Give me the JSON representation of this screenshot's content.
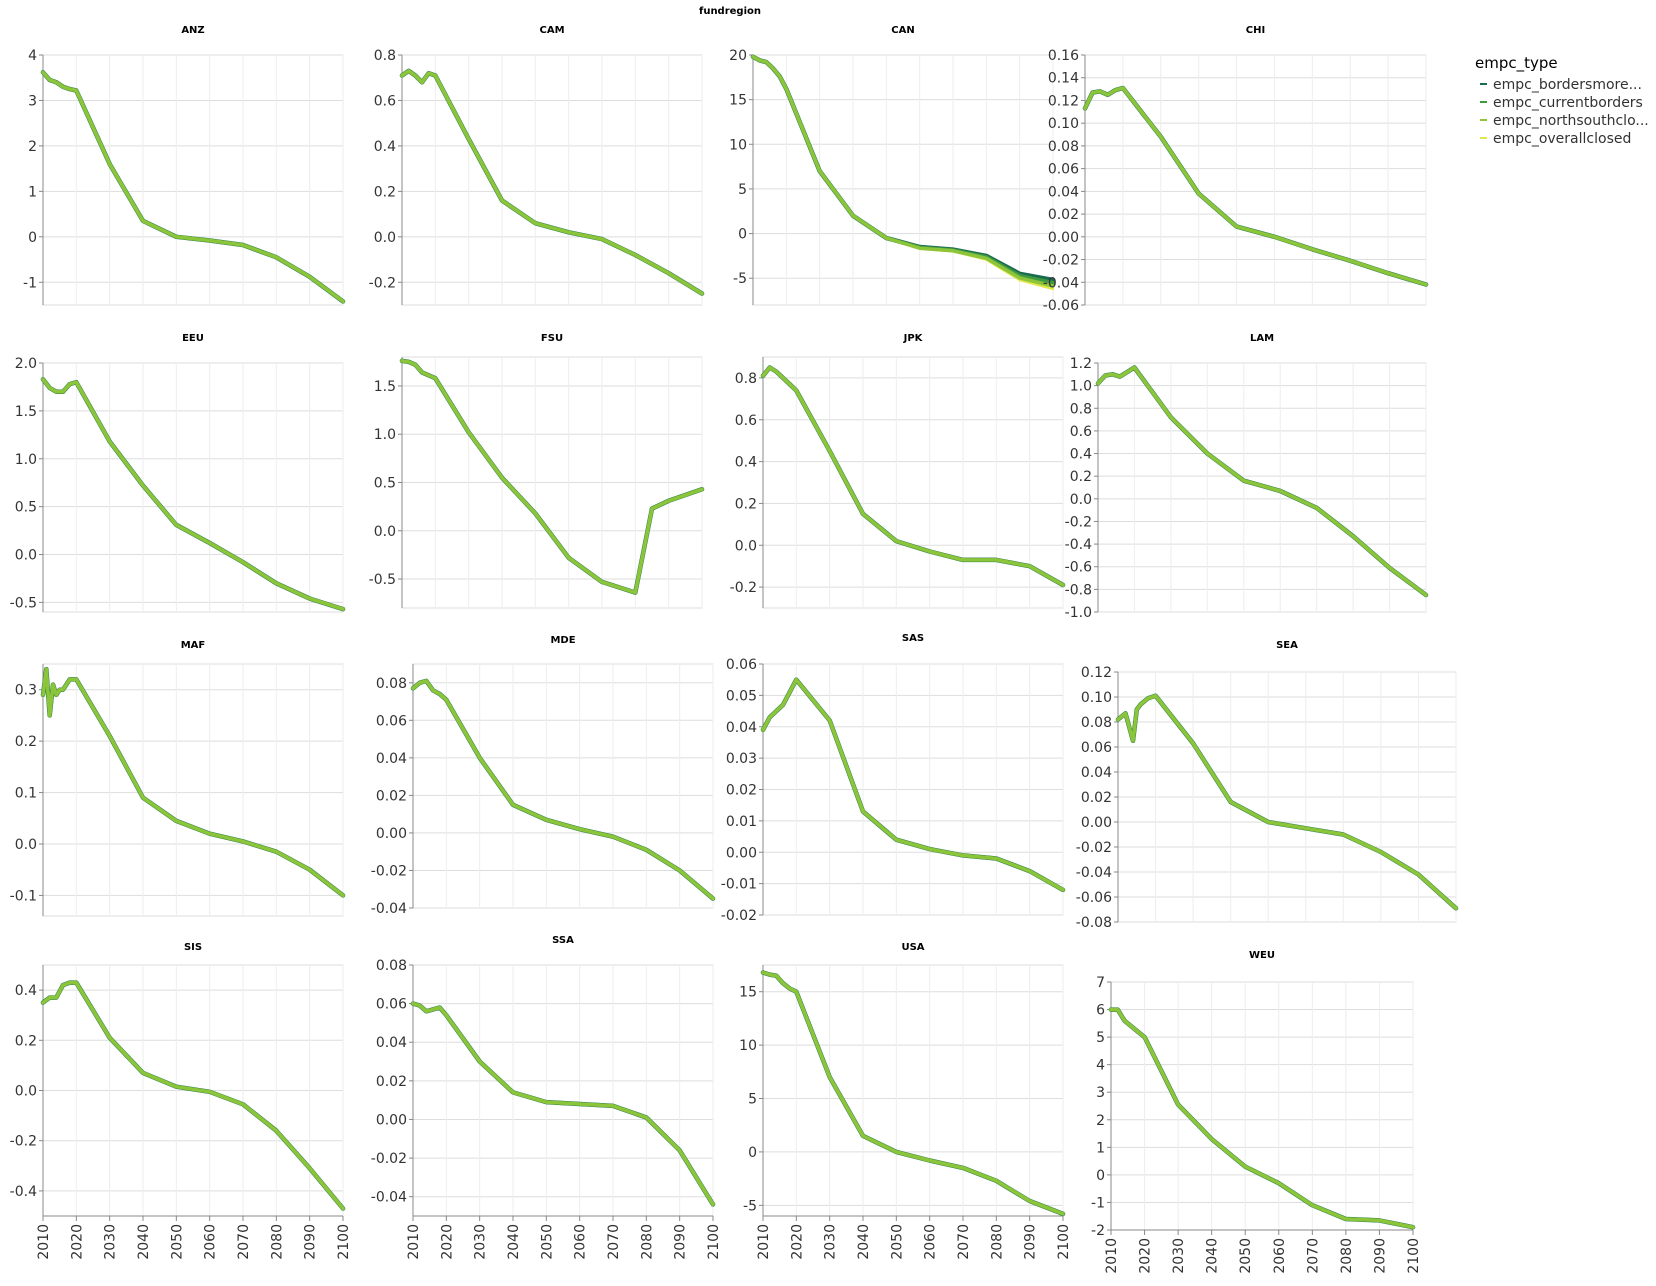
{
  "figure_title": "fundregion",
  "legend": {
    "title": "empc_type",
    "items": [
      "empc_bordersmore...",
      "empc_currentborders",
      "empc_northsouthclo...",
      "empc_overallclosed"
    ],
    "colors": [
      "#1b6b4f",
      "#3f9a3f",
      "#8cc43a",
      "#e1e84a"
    ]
  },
  "chart_data": [
    {
      "type": "line",
      "title": "ANZ",
      "yticks": [
        "4",
        "3",
        "2",
        "1",
        "0",
        "-1"
      ],
      "ytick_values": [
        4,
        3,
        2,
        1,
        0,
        -1
      ],
      "ylim": [
        -1.5,
        4
      ],
      "x": [
        2010,
        2012,
        2014,
        2016,
        2018,
        2020,
        2030,
        2040,
        2050,
        2060,
        2070,
        2080,
        2090,
        2100
      ],
      "series": [
        {
          "name": "empc_bordersmore...",
          "values": [
            3.62,
            3.45,
            3.4,
            3.3,
            3.25,
            3.22,
            1.6,
            0.35,
            0.0,
            -0.08,
            -0.18,
            -0.45,
            -0.88,
            -1.42
          ]
        }
      ]
    },
    {
      "type": "line",
      "title": "CAM",
      "yticks": [
        "0.8",
        "0.6",
        "0.4",
        "0.2",
        "0.0",
        "-0.2"
      ],
      "ytick_values": [
        0.8,
        0.6,
        0.4,
        0.2,
        0.0,
        -0.2
      ],
      "ylim": [
        -0.3,
        0.8
      ],
      "x": [
        2010,
        2012,
        2014,
        2016,
        2018,
        2020,
        2030,
        2040,
        2050,
        2060,
        2070,
        2080,
        2090,
        2100
      ],
      "series": [
        {
          "name": "empc_bordersmore...",
          "values": [
            0.71,
            0.73,
            0.71,
            0.68,
            0.72,
            0.71,
            0.43,
            0.16,
            0.06,
            0.02,
            -0.01,
            -0.08,
            -0.16,
            -0.25
          ]
        }
      ]
    },
    {
      "type": "line",
      "title": "CAN",
      "yticks": [
        "20",
        "15",
        "10",
        "5",
        "0",
        "-5"
      ],
      "ytick_values": [
        20,
        15,
        10,
        5,
        0,
        -5
      ],
      "ylim": [
        -8,
        20
      ],
      "x": [
        2010,
        2012,
        2014,
        2016,
        2018,
        2020,
        2030,
        2040,
        2050,
        2060,
        2070,
        2080,
        2090,
        2100
      ],
      "series": [
        {
          "name": "empc_bordersmore...",
          "values": [
            19.8,
            19.4,
            19.2,
            18.5,
            17.6,
            16.2,
            7.0,
            2.0,
            -0.5,
            -1.5,
            -1.8,
            -2.5,
            -4.5,
            -5.2
          ]
        },
        {
          "name": "empc_overallclosed",
          "values": [
            19.8,
            19.4,
            19.2,
            18.5,
            17.6,
            16.2,
            7.0,
            2.0,
            -0.5,
            -1.7,
            -2.0,
            -2.9,
            -5.2,
            -6.2
          ]
        }
      ]
    },
    {
      "type": "line",
      "title": "CHI",
      "yticks": [
        "0.16",
        "0.14",
        "0.12",
        "0.10",
        "0.08",
        "0.06",
        "0.04",
        "0.02",
        "0.00",
        "-0.02",
        "-0.04",
        "-0.06"
      ],
      "ytick_values": [
        0.16,
        0.14,
        0.12,
        0.1,
        0.08,
        0.06,
        0.04,
        0.02,
        0.0,
        -0.02,
        -0.04,
        -0.06
      ],
      "ylim": [
        -0.06,
        0.16
      ],
      "x": [
        2010,
        2012,
        2014,
        2016,
        2018,
        2020,
        2030,
        2040,
        2050,
        2060,
        2070,
        2080,
        2090,
        2100
      ],
      "series": [
        {
          "name": "empc_bordersmore...",
          "values": [
            0.113,
            0.127,
            0.128,
            0.125,
            0.129,
            0.131,
            0.088,
            0.038,
            0.009,
            0.0,
            -0.011,
            -0.021,
            -0.032,
            -0.042
          ]
        }
      ]
    },
    {
      "type": "line",
      "title": "EEU",
      "yticks": [
        "2.0",
        "1.5",
        "1.0",
        "0.5",
        "0.0",
        "-0.5"
      ],
      "ytick_values": [
        2.0,
        1.5,
        1.0,
        0.5,
        0.0,
        -0.5
      ],
      "ylim": [
        -0.6,
        2.0
      ],
      "x": [
        2010,
        2012,
        2014,
        2016,
        2018,
        2020,
        2030,
        2040,
        2050,
        2060,
        2070,
        2080,
        2090,
        2100
      ],
      "series": [
        {
          "name": "empc_bordersmore...",
          "values": [
            1.83,
            1.74,
            1.7,
            1.7,
            1.78,
            1.8,
            1.18,
            0.72,
            0.31,
            0.12,
            -0.08,
            -0.3,
            -0.46,
            -0.57
          ]
        }
      ]
    },
    {
      "type": "line",
      "title": "FSU",
      "yticks": [
        "1.5",
        "1.0",
        "0.5",
        "0.0",
        "-0.5"
      ],
      "ytick_values": [
        1.5,
        1.0,
        0.5,
        0.0,
        -0.5
      ],
      "ylim": [
        -0.8,
        1.8
      ],
      "x": [
        2010,
        2012,
        2014,
        2016,
        2018,
        2020,
        2030,
        2040,
        2050,
        2060,
        2070,
        2080,
        2085,
        2090,
        2100
      ],
      "series": [
        {
          "name": "empc_bordersmore...",
          "values": [
            1.76,
            1.75,
            1.72,
            1.64,
            1.61,
            1.58,
            1.02,
            0.55,
            0.18,
            -0.28,
            -0.53,
            -0.64,
            0.23,
            0.31,
            0.43
          ]
        }
      ]
    },
    {
      "type": "line",
      "title": "JPK",
      "yticks": [
        "0.8",
        "0.6",
        "0.4",
        "0.2",
        "0.0",
        "-0.2"
      ],
      "ytick_values": [
        0.8,
        0.6,
        0.4,
        0.2,
        0.0,
        -0.2
      ],
      "ylim": [
        -0.3,
        0.9
      ],
      "x": [
        2010,
        2012,
        2014,
        2016,
        2018,
        2020,
        2030,
        2040,
        2050,
        2060,
        2070,
        2080,
        2090,
        2100
      ],
      "series": [
        {
          "name": "empc_bordersmore...",
          "values": [
            0.81,
            0.85,
            0.83,
            0.8,
            0.77,
            0.74,
            0.45,
            0.15,
            0.02,
            -0.03,
            -0.07,
            -0.07,
            -0.1,
            -0.19
          ]
        }
      ]
    },
    {
      "type": "line",
      "title": "LAM",
      "yticks": [
        "1.2",
        "1.0",
        "0.8",
        "0.6",
        "0.4",
        "0.2",
        "0.0",
        "-0.2",
        "-0.4",
        "-0.6",
        "-0.8",
        "-1.0"
      ],
      "ytick_values": [
        1.2,
        1.0,
        0.8,
        0.6,
        0.4,
        0.2,
        0.0,
        -0.2,
        -0.4,
        -0.6,
        -0.8,
        -1.0
      ],
      "ylim": [
        -1.0,
        1.2
      ],
      "x": [
        2010,
        2012,
        2014,
        2016,
        2018,
        2020,
        2030,
        2040,
        2050,
        2060,
        2070,
        2080,
        2090,
        2100
      ],
      "series": [
        {
          "name": "empc_bordersmore...",
          "values": [
            1.02,
            1.09,
            1.1,
            1.08,
            1.12,
            1.16,
            0.72,
            0.4,
            0.16,
            0.07,
            -0.08,
            -0.33,
            -0.61,
            -0.85
          ]
        }
      ]
    },
    {
      "type": "line",
      "title": "MAF",
      "yticks": [
        "0.3",
        "0.2",
        "0.1",
        "0.0",
        "-0.1"
      ],
      "ytick_values": [
        0.3,
        0.2,
        0.1,
        0.0,
        -0.1
      ],
      "ylim": [
        -0.14,
        0.35
      ],
      "x": [
        2010,
        2011,
        2012,
        2013,
        2014,
        2015,
        2016,
        2017,
        2018,
        2020,
        2030,
        2040,
        2050,
        2060,
        2070,
        2080,
        2090,
        2100
      ],
      "series": [
        {
          "name": "empc_bordersmore...",
          "values": [
            0.29,
            0.34,
            0.25,
            0.31,
            0.29,
            0.3,
            0.3,
            0.31,
            0.32,
            0.32,
            0.21,
            0.09,
            0.045,
            0.02,
            0.005,
            -0.015,
            -0.05,
            -0.1
          ]
        }
      ]
    },
    {
      "type": "line",
      "title": "MDE",
      "yticks": [
        "0.08",
        "0.06",
        "0.04",
        "0.02",
        "0.00",
        "-0.02",
        "-0.04"
      ],
      "ytick_values": [
        0.08,
        0.06,
        0.04,
        0.02,
        0.0,
        -0.02,
        -0.04
      ],
      "ylim": [
        -0.04,
        0.09
      ],
      "x": [
        2010,
        2012,
        2014,
        2016,
        2018,
        2020,
        2030,
        2040,
        2050,
        2060,
        2070,
        2080,
        2090,
        2100
      ],
      "series": [
        {
          "name": "empc_bordersmore...",
          "values": [
            0.077,
            0.08,
            0.081,
            0.076,
            0.074,
            0.071,
            0.04,
            0.015,
            0.007,
            0.002,
            -0.002,
            -0.009,
            -0.02,
            -0.035
          ]
        }
      ]
    },
    {
      "type": "line",
      "title": "SAS",
      "yticks": [
        "0.06",
        "0.05",
        "0.04",
        "0.03",
        "0.02",
        "0.01",
        "0.00",
        "-0.01",
        "-0.02"
      ],
      "ytick_values": [
        0.06,
        0.05,
        0.04,
        0.03,
        0.02,
        0.01,
        0.0,
        -0.01,
        -0.02
      ],
      "ylim": [
        -0.02,
        0.06
      ],
      "x": [
        2010,
        2012,
        2014,
        2016,
        2018,
        2020,
        2030,
        2040,
        2050,
        2060,
        2070,
        2080,
        2090,
        2100
      ],
      "series": [
        {
          "name": "empc_bordersmore...",
          "values": [
            0.039,
            0.043,
            0.045,
            0.047,
            0.051,
            0.055,
            0.042,
            0.013,
            0.004,
            0.001,
            -0.001,
            -0.002,
            -0.006,
            -0.012
          ]
        }
      ]
    },
    {
      "type": "line",
      "title": "SEA",
      "yticks": [
        "0.12",
        "0.10",
        "0.08",
        "0.06",
        "0.04",
        "0.02",
        "0.00",
        "-0.02",
        "-0.04",
        "-0.06",
        "-0.08"
      ],
      "ytick_values": [
        0.12,
        0.1,
        0.08,
        0.06,
        0.04,
        0.02,
        0.0,
        -0.02,
        -0.04,
        -0.06,
        -0.08
      ],
      "ylim": [
        -0.08,
        0.12
      ],
      "x": [
        2010,
        2012,
        2014,
        2015,
        2016,
        2018,
        2020,
        2030,
        2040,
        2050,
        2060,
        2070,
        2080,
        2090,
        2100
      ],
      "series": [
        {
          "name": "empc_bordersmore...",
          "values": [
            0.082,
            0.087,
            0.065,
            0.09,
            0.094,
            0.099,
            0.101,
            0.063,
            0.016,
            0.0,
            -0.005,
            -0.01,
            -0.024,
            -0.042,
            -0.069
          ]
        }
      ]
    },
    {
      "type": "line",
      "title": "SIS",
      "yticks": [
        "0.4",
        "0.2",
        "0.0",
        "-0.2",
        "-0.4"
      ],
      "ytick_values": [
        0.4,
        0.2,
        0.0,
        -0.2,
        -0.4
      ],
      "ylim": [
        -0.5,
        0.5
      ],
      "x": [
        2010,
        2012,
        2014,
        2016,
        2018,
        2020,
        2030,
        2040,
        2050,
        2060,
        2070,
        2080,
        2090,
        2100
      ],
      "series": [
        {
          "name": "empc_bordersmore...",
          "values": [
            0.35,
            0.37,
            0.37,
            0.42,
            0.43,
            0.43,
            0.21,
            0.07,
            0.015,
            -0.005,
            -0.055,
            -0.16,
            -0.31,
            -0.47
          ]
        }
      ]
    },
    {
      "type": "line",
      "title": "SSA",
      "yticks": [
        "0.08",
        "0.06",
        "0.04",
        "0.02",
        "0.00",
        "-0.02",
        "-0.04"
      ],
      "ytick_values": [
        0.08,
        0.06,
        0.04,
        0.02,
        0.0,
        -0.02,
        -0.04
      ],
      "ylim": [
        -0.05,
        0.08
      ],
      "x": [
        2010,
        2012,
        2014,
        2016,
        2018,
        2020,
        2030,
        2040,
        2050,
        2060,
        2070,
        2080,
        2090,
        2100
      ],
      "series": [
        {
          "name": "empc_bordersmore...",
          "values": [
            0.06,
            0.059,
            0.056,
            0.057,
            0.058,
            0.054,
            0.03,
            0.014,
            0.009,
            0.008,
            0.007,
            0.001,
            -0.016,
            -0.044
          ]
        }
      ]
    },
    {
      "type": "line",
      "title": "USA",
      "yticks": [
        "15",
        "10",
        "5",
        "0",
        "-5"
      ],
      "ytick_values": [
        15,
        10,
        5,
        0,
        -5
      ],
      "ylim": [
        -6,
        17.5
      ],
      "x": [
        2010,
        2012,
        2014,
        2016,
        2018,
        2020,
        2030,
        2040,
        2050,
        2060,
        2070,
        2080,
        2090,
        2100
      ],
      "series": [
        {
          "name": "empc_bordersmore...",
          "values": [
            16.8,
            16.6,
            16.5,
            15.8,
            15.3,
            15.0,
            7.0,
            1.5,
            0.0,
            -0.8,
            -1.5,
            -2.7,
            -4.6,
            -5.8
          ]
        }
      ]
    },
    {
      "type": "line",
      "title": "WEU",
      "yticks": [
        "7",
        "6",
        "5",
        "4",
        "3",
        "2",
        "1",
        "0",
        "-1",
        "-2"
      ],
      "ytick_values": [
        7,
        6,
        5,
        4,
        3,
        2,
        1,
        0,
        -1,
        -2
      ],
      "ylim": [
        -2,
        7
      ],
      "x": [
        2010,
        2012,
        2014,
        2016,
        2018,
        2020,
        2030,
        2040,
        2050,
        2060,
        2070,
        2080,
        2090,
        2100
      ],
      "series": [
        {
          "name": "empc_bordersmore...",
          "values": [
            6.0,
            6.0,
            5.6,
            5.4,
            5.2,
            5.0,
            2.55,
            1.3,
            0.3,
            -0.3,
            -1.1,
            -1.6,
            -1.65,
            -1.9
          ]
        }
      ]
    }
  ],
  "xticks": [
    "2010",
    "2020",
    "2030",
    "2040",
    "2050",
    "2060",
    "2070",
    "2080",
    "2090",
    "2100"
  ]
}
